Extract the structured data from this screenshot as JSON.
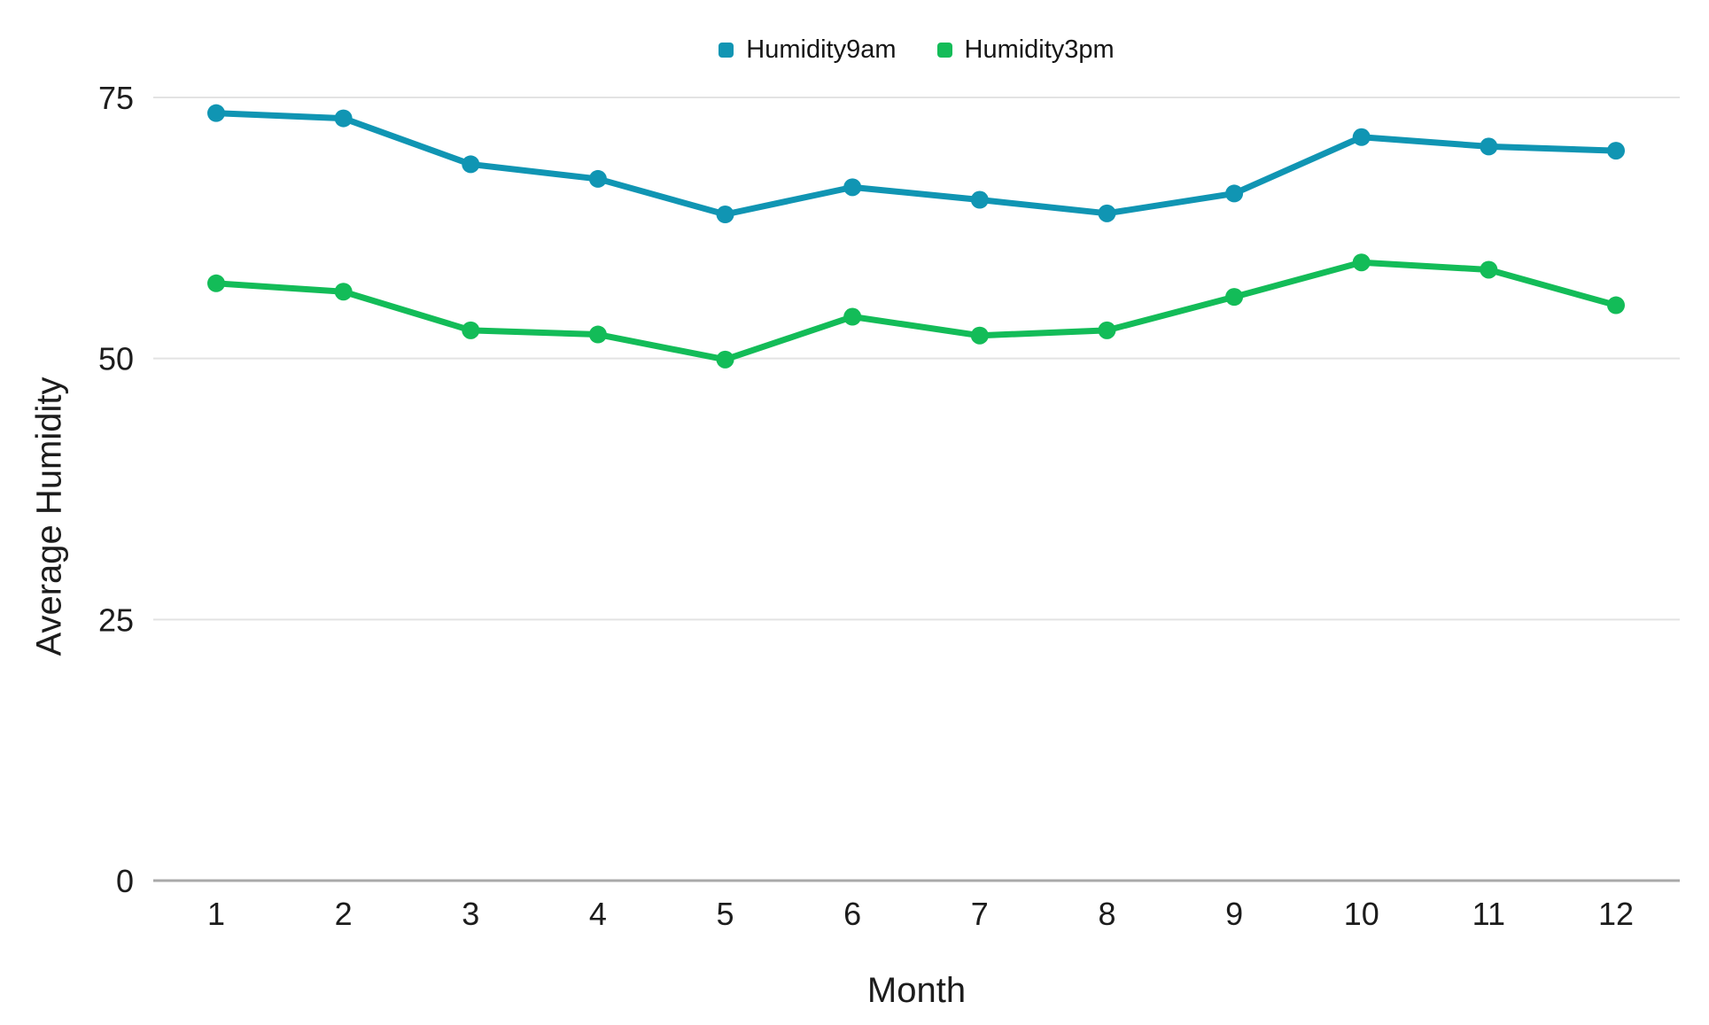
{
  "chart_data": {
    "type": "line",
    "title": "",
    "xlabel": "Month",
    "ylabel": "Average Humidity",
    "x": [
      1,
      2,
      3,
      4,
      5,
      6,
      7,
      8,
      9,
      10,
      11,
      12
    ],
    "series": [
      {
        "name": "Humidity9am",
        "color": "#1095b3",
        "values": [
          73.5,
          73.0,
          68.6,
          67.2,
          63.8,
          66.4,
          65.2,
          63.9,
          65.8,
          71.2,
          70.3,
          69.9
        ]
      },
      {
        "name": "Humidity3pm",
        "color": "#13bc58",
        "values": [
          57.2,
          56.4,
          52.7,
          52.3,
          49.9,
          54.0,
          52.2,
          52.7,
          55.9,
          59.2,
          58.5,
          55.1
        ]
      }
    ],
    "yticks": [
      0,
      25,
      50,
      75
    ],
    "ylim": [
      0,
      75
    ],
    "grid": "horizontal",
    "legend_position": "top-center",
    "colors": {
      "grid_line": "#e3e3e3",
      "axis_line": "#a9a9a9",
      "tick_text": "#1c1c1c"
    }
  }
}
